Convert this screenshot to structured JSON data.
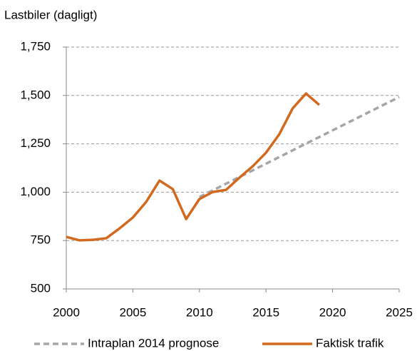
{
  "chart_data": {
    "type": "line",
    "y_axis_label": "Lastbiler (dagligt)",
    "xlim": [
      2000,
      2025
    ],
    "xticks": [
      2000,
      2005,
      2010,
      2015,
      2020,
      2025
    ],
    "ylim": [
      500,
      1750
    ],
    "yticks": [
      500,
      750,
      {
        "value": 1000,
        "label": "1,000"
      },
      {
        "value": 1250,
        "label": "1,250"
      },
      {
        "value": 1500,
        "label": "1,500"
      },
      {
        "value": 1750,
        "label": "1,750"
      }
    ],
    "grid": true,
    "legend": "bottom",
    "series": [
      {
        "name": "Intraplan 2014 prognose",
        "color": "#a6a6a6",
        "dashed": true,
        "x": [
          2010,
          2025
        ],
        "values": [
          975,
          1492
        ]
      },
      {
        "name": "Faktisk trafik",
        "color": "#d2691e",
        "dashed": false,
        "x": [
          2000,
          2001,
          2002,
          2003,
          2004,
          2005,
          2006,
          2007,
          2008,
          2009,
          2010,
          2011,
          2012,
          2013,
          2014,
          2015,
          2016,
          2017,
          2018,
          2019
        ],
        "values": [
          769,
          751,
          754,
          762,
          813,
          869,
          950,
          1060,
          1016,
          861,
          965,
          1001,
          1012,
          1075,
          1134,
          1204,
          1300,
          1433,
          1510,
          1451
        ]
      }
    ]
  }
}
